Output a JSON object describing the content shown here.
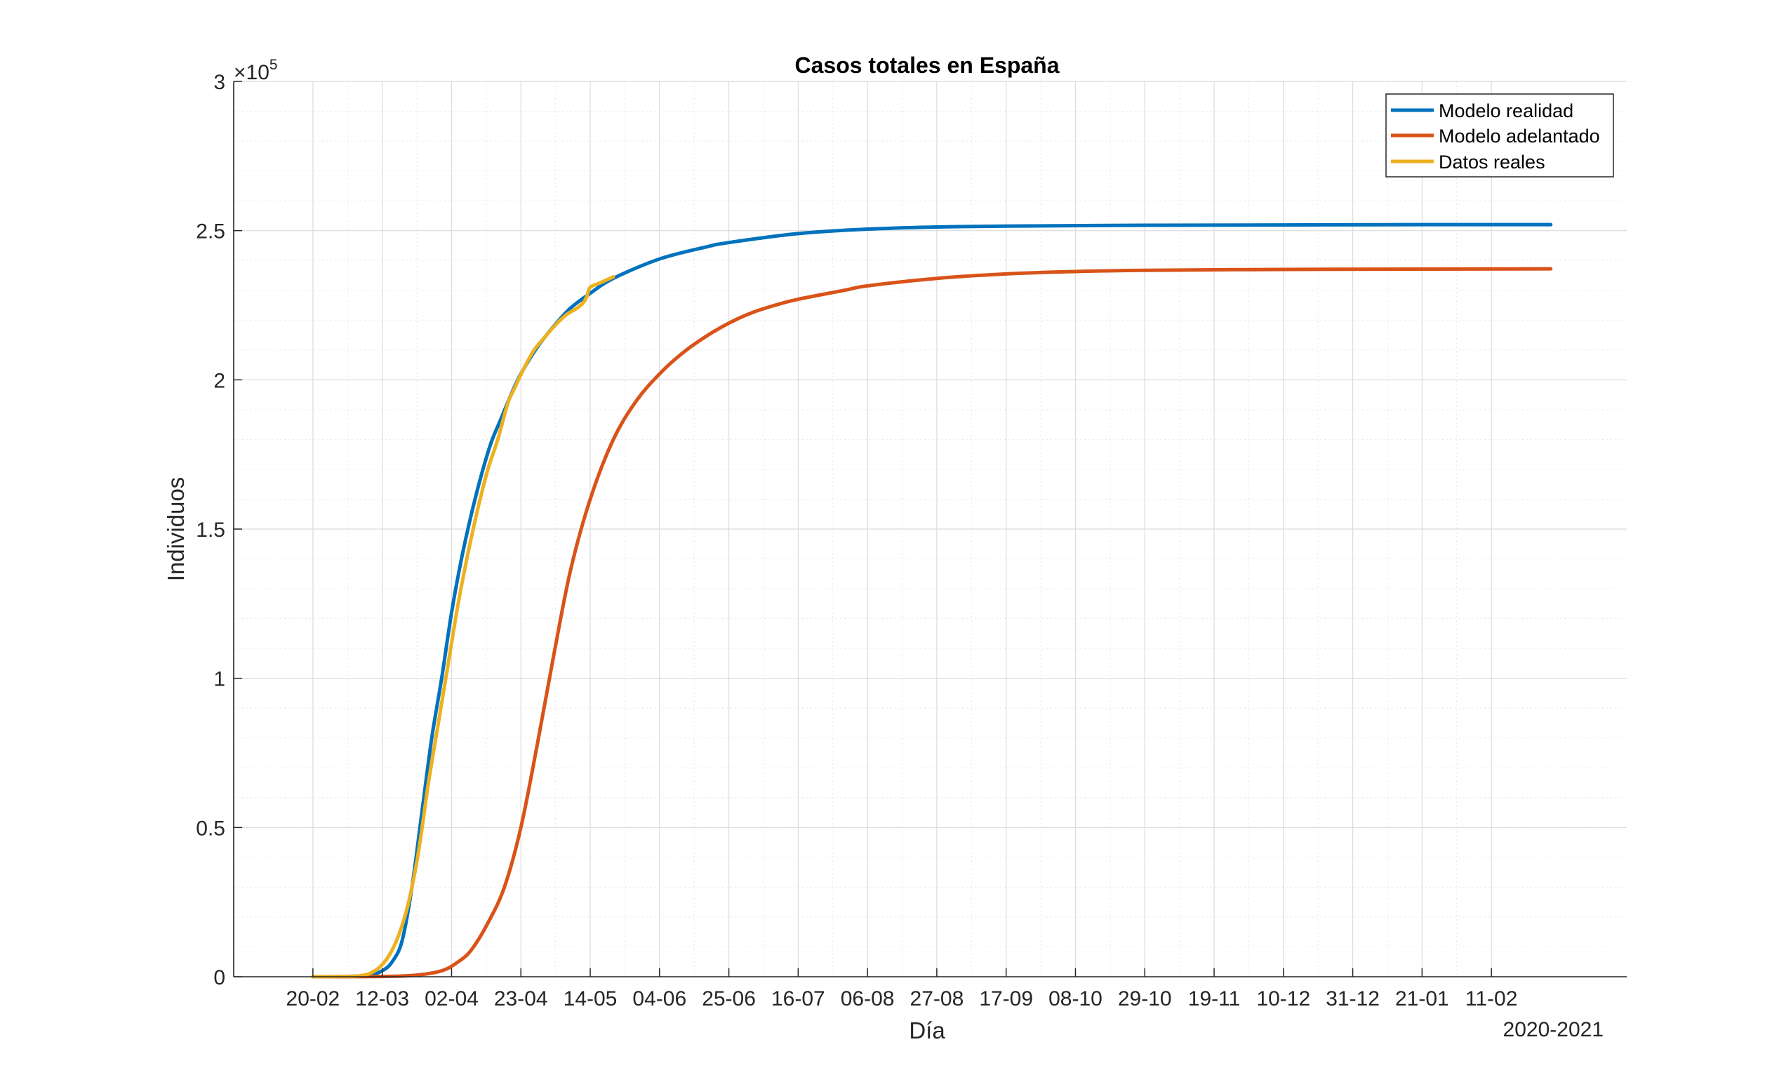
{
  "chart_data": {
    "type": "line",
    "title": "Casos totales en España",
    "xlabel": "Día",
    "ylabel": "Individuos",
    "x_note": "2020-2021",
    "y_exponent_base": "×10",
    "y_exponent_power": "5",
    "ylim": [
      0,
      3
    ],
    "y_ticks": [
      0,
      0.5,
      1,
      1.5,
      2,
      2.5,
      3
    ],
    "y_tick_labels": [
      "0",
      "0.5",
      "1",
      "1.5",
      "2",
      "2.5",
      "3"
    ],
    "xlim": [
      "2020-01-27",
      "2021-03-24"
    ],
    "x_ticks": [
      "2020-02-20",
      "2020-03-12",
      "2020-04-02",
      "2020-04-23",
      "2020-05-14",
      "2020-06-04",
      "2020-06-25",
      "2020-07-16",
      "2020-08-06",
      "2020-08-27",
      "2020-09-17",
      "2020-10-08",
      "2020-10-29",
      "2020-11-19",
      "2020-12-10",
      "2020-12-31",
      "2021-01-21",
      "2021-02-11"
    ],
    "x_tick_labels": [
      "20-02",
      "12-03",
      "02-04",
      "23-04",
      "14-05",
      "04-06",
      "25-06",
      "16-07",
      "06-08",
      "27-08",
      "17-09",
      "08-10",
      "29-10",
      "19-11",
      "10-12",
      "31-12",
      "21-01",
      "11-02"
    ],
    "grid": true,
    "minor_grid": true,
    "legend_position": "top-right",
    "colors": [
      "#0072BD",
      "#D95319",
      "#EDB120"
    ],
    "series": [
      {
        "name": "Modelo realidad",
        "color": "#0072BD",
        "points": [
          [
            "2020-02-20",
            0
          ],
          [
            "2020-03-01",
            0.001
          ],
          [
            "2020-03-08",
            0.005
          ],
          [
            "2020-03-12",
            0.02
          ],
          [
            "2020-03-15",
            0.05
          ],
          [
            "2020-03-18",
            0.12
          ],
          [
            "2020-03-21",
            0.3
          ],
          [
            "2020-03-24",
            0.55
          ],
          [
            "2020-03-27",
            0.8
          ],
          [
            "2020-03-30",
            1.0
          ],
          [
            "2020-04-02",
            1.22
          ],
          [
            "2020-04-05",
            1.4
          ],
          [
            "2020-04-08",
            1.55
          ],
          [
            "2020-04-11",
            1.68
          ],
          [
            "2020-04-14",
            1.79
          ],
          [
            "2020-04-17",
            1.87
          ],
          [
            "2020-04-20",
            1.95
          ],
          [
            "2020-04-23",
            2.02
          ],
          [
            "2020-04-28",
            2.11
          ],
          [
            "2020-05-03",
            2.18
          ],
          [
            "2020-05-08",
            2.24
          ],
          [
            "2020-05-14",
            2.29
          ],
          [
            "2020-05-21",
            2.34
          ],
          [
            "2020-06-04",
            2.405
          ],
          [
            "2020-06-18",
            2.445
          ],
          [
            "2020-06-25",
            2.46
          ],
          [
            "2020-07-16",
            2.49
          ],
          [
            "2020-08-06",
            2.505
          ],
          [
            "2020-08-27",
            2.512
          ],
          [
            "2020-09-17",
            2.515
          ],
          [
            "2020-10-29",
            2.518
          ],
          [
            "2020-12-10",
            2.519
          ],
          [
            "2021-01-21",
            2.52
          ],
          [
            "2021-03-01",
            2.52
          ]
        ]
      },
      {
        "name": "Modelo adelantado",
        "color": "#D95319",
        "points": [
          [
            "2020-02-20",
            0
          ],
          [
            "2020-03-12",
            0.001
          ],
          [
            "2020-03-22",
            0.005
          ],
          [
            "2020-03-30",
            0.02
          ],
          [
            "2020-04-04",
            0.05
          ],
          [
            "2020-04-08",
            0.09
          ],
          [
            "2020-04-13",
            0.18
          ],
          [
            "2020-04-18",
            0.3
          ],
          [
            "2020-04-23",
            0.5
          ],
          [
            "2020-04-28",
            0.78
          ],
          [
            "2020-05-03",
            1.08
          ],
          [
            "2020-05-08",
            1.36
          ],
          [
            "2020-05-14",
            1.6
          ],
          [
            "2020-05-21",
            1.8
          ],
          [
            "2020-05-28",
            1.93
          ],
          [
            "2020-06-04",
            2.02
          ],
          [
            "2020-06-11",
            2.09
          ],
          [
            "2020-06-18",
            2.145
          ],
          [
            "2020-06-25",
            2.19
          ],
          [
            "2020-07-02",
            2.225
          ],
          [
            "2020-07-09",
            2.25
          ],
          [
            "2020-07-16",
            2.27
          ],
          [
            "2020-07-30",
            2.3
          ],
          [
            "2020-08-06",
            2.315
          ],
          [
            "2020-08-27",
            2.34
          ],
          [
            "2020-09-17",
            2.355
          ],
          [
            "2020-10-08",
            2.363
          ],
          [
            "2020-10-29",
            2.367
          ],
          [
            "2020-12-10",
            2.37
          ],
          [
            "2021-01-21",
            2.371
          ],
          [
            "2021-03-01",
            2.372
          ]
        ]
      },
      {
        "name": "Datos reales",
        "color": "#EDB120",
        "points": [
          [
            "2020-02-20",
            0
          ],
          [
            "2020-03-01",
            0.001
          ],
          [
            "2020-03-05",
            0.003
          ],
          [
            "2020-03-08",
            0.01
          ],
          [
            "2020-03-11",
            0.03
          ],
          [
            "2020-03-14",
            0.07
          ],
          [
            "2020-03-17",
            0.14
          ],
          [
            "2020-03-20",
            0.25
          ],
          [
            "2020-03-23",
            0.42
          ],
          [
            "2020-03-26",
            0.65
          ],
          [
            "2020-03-29",
            0.85
          ],
          [
            "2020-04-01",
            1.05
          ],
          [
            "2020-04-04",
            1.25
          ],
          [
            "2020-04-07",
            1.42
          ],
          [
            "2020-04-10",
            1.57
          ],
          [
            "2020-04-13",
            1.7
          ],
          [
            "2020-04-16",
            1.8
          ],
          [
            "2020-04-19",
            1.92
          ],
          [
            "2020-04-21",
            1.97
          ],
          [
            "2020-04-24",
            2.04
          ],
          [
            "2020-04-27",
            2.1
          ],
          [
            "2020-04-30",
            2.14
          ],
          [
            "2020-05-04",
            2.19
          ],
          [
            "2020-05-07",
            2.22
          ],
          [
            "2020-05-10",
            2.24
          ],
          [
            "2020-05-12",
            2.26
          ],
          [
            "2020-05-13",
            2.28
          ],
          [
            "2020-05-14",
            2.31
          ],
          [
            "2020-05-17",
            2.325
          ],
          [
            "2020-05-21",
            2.345
          ]
        ]
      }
    ]
  }
}
